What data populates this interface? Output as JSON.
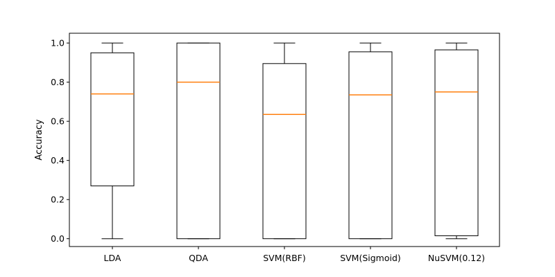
{
  "chart_data": {
    "type": "box",
    "title": "",
    "xlabel": "",
    "ylabel": "Accuracy",
    "ylim": [
      -0.04,
      1.05
    ],
    "yticks": [
      "0.0",
      "0.2",
      "0.4",
      "0.6",
      "0.8",
      "1.0"
    ],
    "categories": [
      "LDA",
      "QDA",
      "SVM(RBF)",
      "SVM(Sigmoid)",
      "NuSVM(0.12)"
    ],
    "boxes": [
      {
        "category": "LDA",
        "whisker_low": 0.0,
        "q1": 0.27,
        "median": 0.74,
        "q3": 0.95,
        "whisker_high": 1.0
      },
      {
        "category": "QDA",
        "whisker_low": 0.0,
        "q1": 0.0,
        "median": 0.8,
        "q3": 1.0,
        "whisker_high": 1.0
      },
      {
        "category": "SVM(RBF)",
        "whisker_low": 0.0,
        "q1": 0.0,
        "median": 0.635,
        "q3": 0.895,
        "whisker_high": 1.0
      },
      {
        "category": "SVM(Sigmoid)",
        "whisker_low": 0.0,
        "q1": 0.0,
        "median": 0.735,
        "q3": 0.955,
        "whisker_high": 1.0
      },
      {
        "category": "NuSVM(0.12)",
        "whisker_low": 0.0,
        "q1": 0.015,
        "median": 0.75,
        "q3": 0.965,
        "whisker_high": 1.0
      }
    ],
    "grid": false,
    "colors": {
      "box": "#000000",
      "median": "#ff7f0e"
    }
  }
}
